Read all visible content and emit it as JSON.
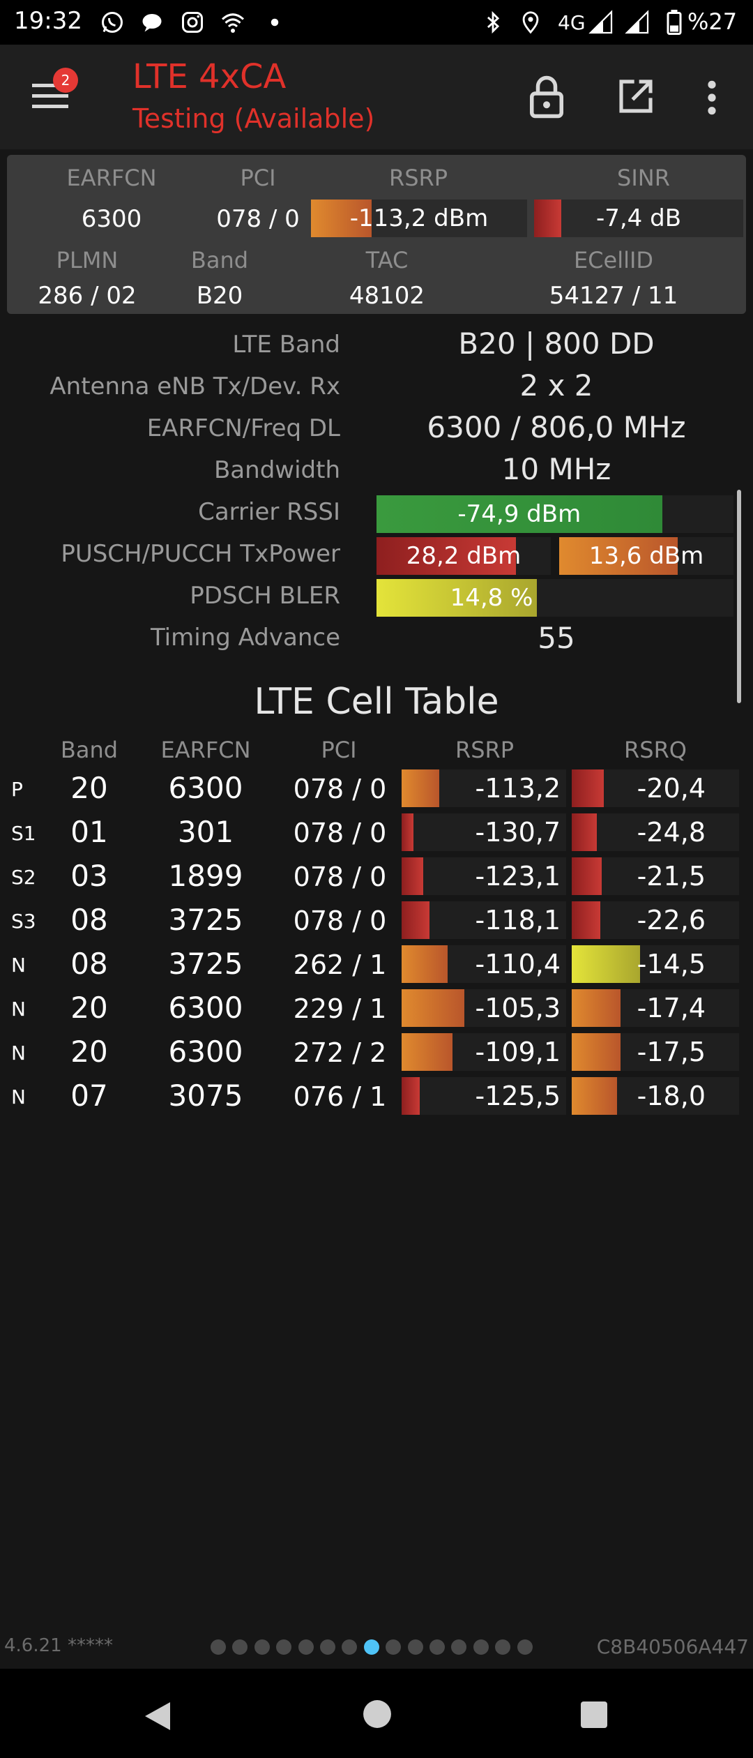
{
  "status_bar": {
    "time": "19:32",
    "network": "4G",
    "battery": "%27",
    "icons": [
      "whatsapp-icon",
      "chat-icon",
      "instagram-icon",
      "wifi-icon",
      "dot-icon",
      "bluetooth-icon",
      "location-icon",
      "signal-icon",
      "signal-icon",
      "battery-icon"
    ]
  },
  "app_bar": {
    "title": "LTE 4xCA",
    "subtitle": "Testing (Available)",
    "menu_badge": "2"
  },
  "summary": {
    "headers": {
      "earfcn": "EARFCN",
      "pci": "PCI",
      "rsrp": "RSRP",
      "sinr": "SINR",
      "plmn": "PLMN",
      "band": "Band",
      "tac": "TAC",
      "ecellid": "ECellID"
    },
    "values": {
      "earfcn": "6300",
      "pci": "078 / 0",
      "rsrp": "-113,2 dBm",
      "rsrp_level": 0.28,
      "sinr": "-7,4 dB",
      "sinr_level": 0.13,
      "plmn": "286 / 02",
      "band": "B20",
      "tac": "48102",
      "ecellid": "54127 / 11"
    }
  },
  "details": {
    "lte_band": {
      "label": "LTE Band",
      "value": "B20 | 800 DD"
    },
    "antenna": {
      "label": "Antenna eNB Tx/Dev. Rx",
      "value": "2 x 2"
    },
    "earfcn_freq": {
      "label": "EARFCN/Freq DL",
      "value": "6300 / 806,0 MHz"
    },
    "bandwidth": {
      "label": "Bandwidth",
      "value": "10 MHz"
    },
    "carrier_rssi": {
      "label": "Carrier RSSI",
      "value": "-74,9 dBm",
      "level": 0.8
    },
    "tx_power": {
      "label": "PUSCH/PUCCH TxPower",
      "pusch": "28,2 dBm",
      "pusch_level": 0.8,
      "pucch": "13,6 dBm",
      "pucch_level": 0.68
    },
    "pdsch_bler": {
      "label": "PDSCH BLER",
      "value": "14,8 %",
      "level": 0.45
    },
    "timing_advance": {
      "label": "Timing Advance",
      "value": "55"
    }
  },
  "cell_table": {
    "title": "LTE Cell Table",
    "headers": [
      "Band",
      "EARFCN",
      "PCI",
      "RSRP",
      "RSRQ"
    ],
    "rows": [
      {
        "tag": "P",
        "band": "20",
        "earfcn": "6300",
        "pci": "078 / 0",
        "rsrp": "-113,2",
        "rsrp_level": 0.23,
        "rsrp_color": "orange",
        "rsrq": "-20,4",
        "rsrq_level": 0.19,
        "rsrq_color": "red"
      },
      {
        "tag": "S1",
        "band": "01",
        "earfcn": "301",
        "pci": "078 / 0",
        "rsrp": "-130,7",
        "rsrp_level": 0.07,
        "rsrp_color": "red",
        "rsrq": "-24,8",
        "rsrq_level": 0.15,
        "rsrq_color": "red"
      },
      {
        "tag": "S2",
        "band": "03",
        "earfcn": "1899",
        "pci": "078 / 0",
        "rsrp": "-123,1",
        "rsrp_level": 0.13,
        "rsrp_color": "red",
        "rsrq": "-21,5",
        "rsrq_level": 0.18,
        "rsrq_color": "red"
      },
      {
        "tag": "S3",
        "band": "08",
        "earfcn": "3725",
        "pci": "078 / 0",
        "rsrp": "-118,1",
        "rsrp_level": 0.17,
        "rsrp_color": "red",
        "rsrq": "-22,6",
        "rsrq_level": 0.17,
        "rsrq_color": "red"
      },
      {
        "tag": "N",
        "band": "08",
        "earfcn": "3725",
        "pci": "262 / 1",
        "rsrp": "-110,4",
        "rsrp_level": 0.28,
        "rsrp_color": "orange",
        "rsrq": "-14,5",
        "rsrq_level": 0.41,
        "rsrq_color": "yellow"
      },
      {
        "tag": "N",
        "band": "20",
        "earfcn": "6300",
        "pci": "229 / 1",
        "rsrp": "-105,3",
        "rsrp_level": 0.38,
        "rsrp_color": "orange",
        "rsrq": "-17,4",
        "rsrq_level": 0.29,
        "rsrq_color": "orange"
      },
      {
        "tag": "N",
        "band": "20",
        "earfcn": "6300",
        "pci": "272 / 2",
        "rsrp": "-109,1",
        "rsrp_level": 0.31,
        "rsrp_color": "orange",
        "rsrq": "-17,5",
        "rsrq_level": 0.29,
        "rsrq_color": "orange"
      },
      {
        "tag": "N",
        "band": "07",
        "earfcn": "3075",
        "pci": "076 / 1",
        "rsrp": "-125,5",
        "rsrp_level": 0.11,
        "rsrp_color": "red",
        "rsrq": "-18,0",
        "rsrq_level": 0.27,
        "rsrq_color": "orange"
      }
    ]
  },
  "footer": {
    "version": "4.6.21 *****",
    "device_id": "C8B40506A447",
    "page_count": 15,
    "active_page": 7
  }
}
